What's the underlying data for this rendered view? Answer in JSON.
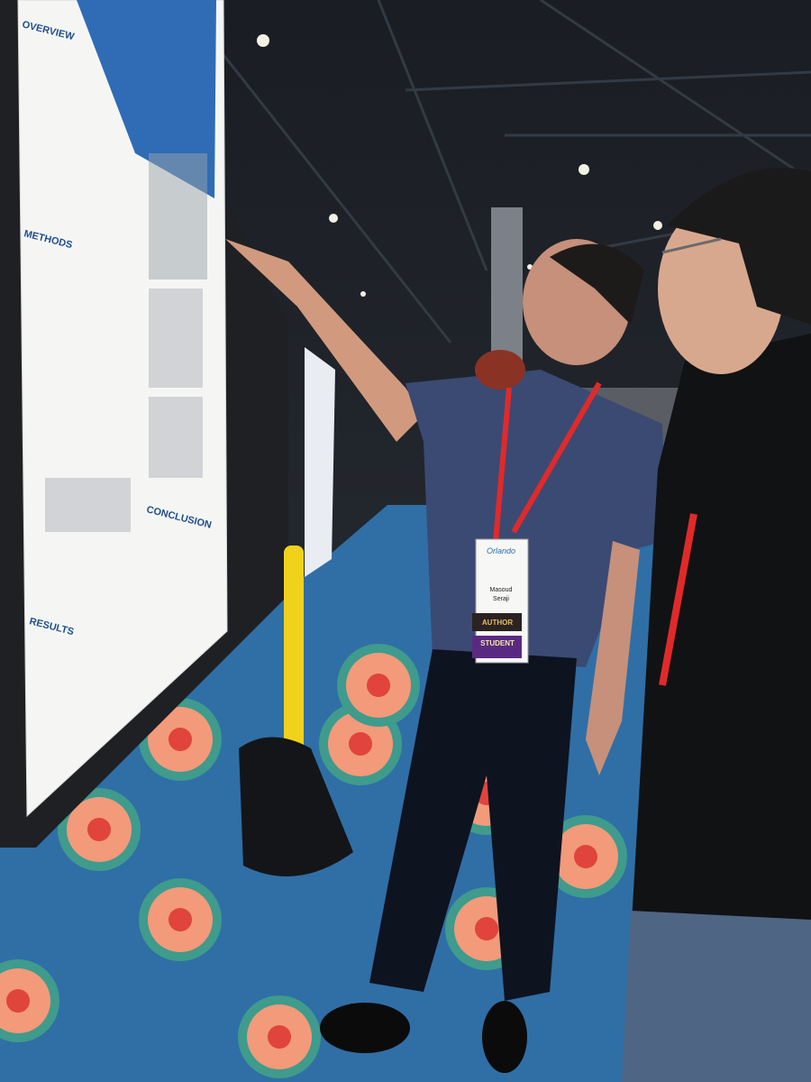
{
  "scene": {
    "poster": {
      "sections": [
        "OVERVIEW",
        "METHODS",
        "CONCLUSION",
        "RESULTS"
      ]
    },
    "badge": {
      "event": "Orlando",
      "first_name": "Masoud",
      "last_name": "Seraji",
      "ribbons": [
        "AUTHOR",
        "STUDENT"
      ]
    }
  }
}
